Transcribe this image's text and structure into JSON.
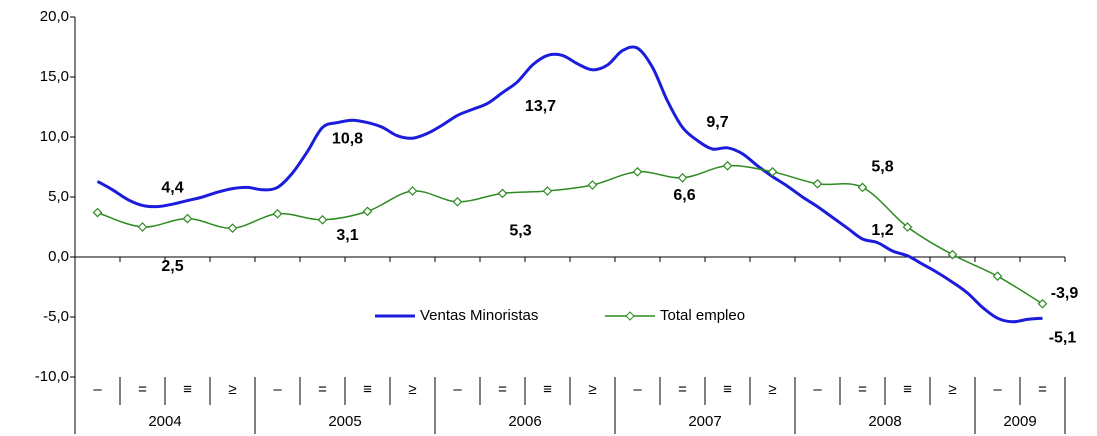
{
  "chart_data": {
    "type": "line",
    "categories": [
      "–",
      "=",
      "≡",
      "≥",
      "–",
      "=",
      "≡",
      "≥",
      "–",
      "=",
      "≡",
      "≥",
      "–",
      "=",
      "≡",
      "≥",
      "–",
      "=",
      "≡",
      "≥",
      "–",
      "="
    ],
    "years": [
      "2004",
      "2005",
      "2006",
      "2007",
      "2008",
      "2009"
    ],
    "xlim": [
      -1.5,
      64.5
    ],
    "ylim": [
      -10,
      20
    ],
    "yticks": [
      {
        "value": -10,
        "label": "-10,0"
      },
      {
        "value": -5,
        "label": "-5,0"
      },
      {
        "value": 0,
        "label": "0,0"
      },
      {
        "value": 5,
        "label": "5,0"
      },
      {
        "value": 10,
        "label": "10,0"
      },
      {
        "value": 15,
        "label": "15,0"
      },
      {
        "value": 20,
        "label": "20,0"
      }
    ],
    "series": [
      {
        "name": "Ventas Minoristas",
        "color": "#1c1cdc",
        "x": [
          0,
          1,
          2,
          3,
          4,
          5,
          6,
          7,
          8,
          9,
          10,
          11,
          12,
          13,
          14,
          15,
          16,
          17,
          18,
          19,
          20,
          21,
          22,
          23,
          24,
          25,
          26,
          27,
          28,
          29,
          30,
          31,
          32,
          33,
          34,
          35,
          36,
          37,
          38,
          39,
          40,
          41,
          42,
          43,
          44,
          45,
          46,
          47,
          48,
          49,
          50,
          51,
          52,
          53,
          54,
          55,
          56,
          57,
          58,
          59,
          60,
          61,
          62,
          63
        ],
        "values": [
          6.3,
          5.6,
          4.8,
          4.3,
          4.2,
          4.4,
          4.7,
          5.0,
          5.4,
          5.7,
          5.8,
          5.6,
          5.8,
          7.0,
          8.8,
          10.8,
          11.2,
          11.4,
          11.2,
          10.8,
          10.1,
          9.9,
          10.3,
          11.0,
          11.8,
          12.3,
          12.8,
          13.7,
          14.6,
          16.0,
          16.8,
          16.8,
          16.1,
          15.6,
          16.0,
          17.2,
          17.4,
          15.8,
          13.0,
          10.8,
          9.7,
          9.0,
          9.1,
          8.6,
          7.6,
          6.7,
          5.9,
          5.0,
          4.2,
          3.3,
          2.4,
          1.5,
          1.2,
          0.5,
          0.1,
          -0.6,
          -1.3,
          -2.1,
          -3.0,
          -4.2,
          -5.1,
          -5.4,
          -5.2,
          -5.1
        ],
        "value_labels": [
          null,
          null,
          null,
          null,
          null,
          "4,4",
          null,
          null,
          null,
          null,
          null,
          null,
          null,
          null,
          null,
          "10,8",
          null,
          null,
          null,
          null,
          null,
          null,
          null,
          null,
          null,
          null,
          null,
          "13,7",
          null,
          null,
          null,
          null,
          null,
          null,
          null,
          null,
          null,
          null,
          null,
          null,
          "9,7",
          null,
          null,
          null,
          null,
          null,
          null,
          null,
          null,
          null,
          null,
          null,
          "1,2",
          null,
          null,
          null,
          null,
          null,
          null,
          null,
          null,
          null,
          null,
          "-5,1"
        ]
      },
      {
        "name": "Total empleo",
        "color": "#2e8b22",
        "marker": "diamond",
        "x": [
          0,
          3,
          6,
          9,
          12,
          15,
          18,
          21,
          24,
          27,
          30,
          33,
          36,
          39,
          42,
          45,
          48,
          51,
          54,
          57,
          60,
          63
        ],
        "values": [
          3.7,
          2.5,
          3.2,
          2.4,
          3.6,
          3.1,
          3.8,
          5.5,
          4.6,
          5.3,
          5.5,
          6.0,
          7.1,
          6.6,
          7.6,
          7.1,
          6.1,
          5.8,
          2.5,
          0.2,
          -1.6,
          -3.9
        ],
        "value_labels": [
          null,
          "2,5",
          null,
          null,
          null,
          "3,1",
          null,
          null,
          null,
          "5,3",
          null,
          null,
          null,
          "6,6",
          null,
          null,
          null,
          "5,8",
          null,
          null,
          null,
          "-3,9"
        ]
      }
    ]
  }
}
